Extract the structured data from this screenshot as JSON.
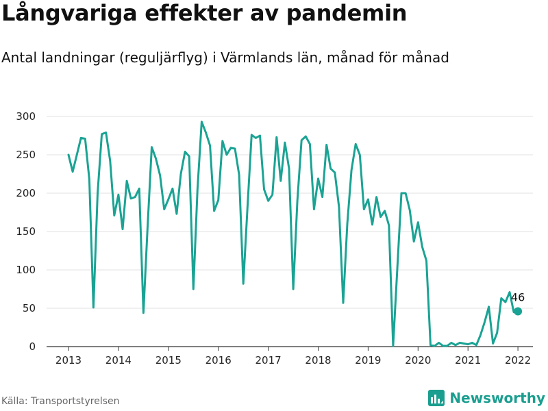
{
  "title": "Långvariga effekter av pandemin",
  "subtitle": "Antal landningar (reguljärflyg) i Värmlands län, månad för månad",
  "source": "Källa: Transportstyrelsen",
  "brand": {
    "name": "Newsworthy",
    "logo_icon": "newsworthy-logo-icon"
  },
  "colors": {
    "line": "#1aa394",
    "grid": "#e2e2e2",
    "axis": "#333333"
  },
  "chart_data": {
    "type": "line",
    "xlabel": "",
    "ylabel": "",
    "x_ticks": [
      "2013",
      "2014",
      "2015",
      "2016",
      "2017",
      "2018",
      "2019",
      "2020",
      "2021",
      "2022"
    ],
    "y_ticks": [
      0,
      50,
      100,
      150,
      200,
      250,
      300
    ],
    "ylim": [
      0,
      300
    ],
    "grid": "horizontal",
    "last_value_label": "46",
    "series": [
      {
        "start": "2013-01",
        "values": [
          250,
          228,
          250,
          272,
          271,
          218,
          51,
          200,
          277,
          279,
          242,
          171,
          198,
          153,
          216,
          193,
          195,
          206,
          44,
          155,
          260,
          245,
          223,
          179,
          192,
          206,
          173,
          225,
          254,
          248,
          75,
          205,
          293,
          279,
          262,
          177,
          191,
          268,
          250,
          259,
          258,
          224,
          82,
          180,
          276,
          272,
          275,
          205,
          190,
          198,
          273,
          216,
          266,
          232,
          75,
          190,
          269,
          274,
          264,
          179,
          219,
          195,
          263,
          232,
          227,
          182,
          57,
          160,
          230,
          264,
          250,
          179,
          192,
          159,
          195,
          169,
          177,
          158,
          1,
          100,
          200,
          200,
          178,
          137,
          162,
          130,
          112,
          2,
          1,
          5,
          1,
          1,
          5,
          2,
          5,
          4,
          3,
          5,
          2,
          15,
          32,
          52,
          4,
          18,
          63,
          58,
          71,
          45,
          46
        ]
      }
    ]
  }
}
